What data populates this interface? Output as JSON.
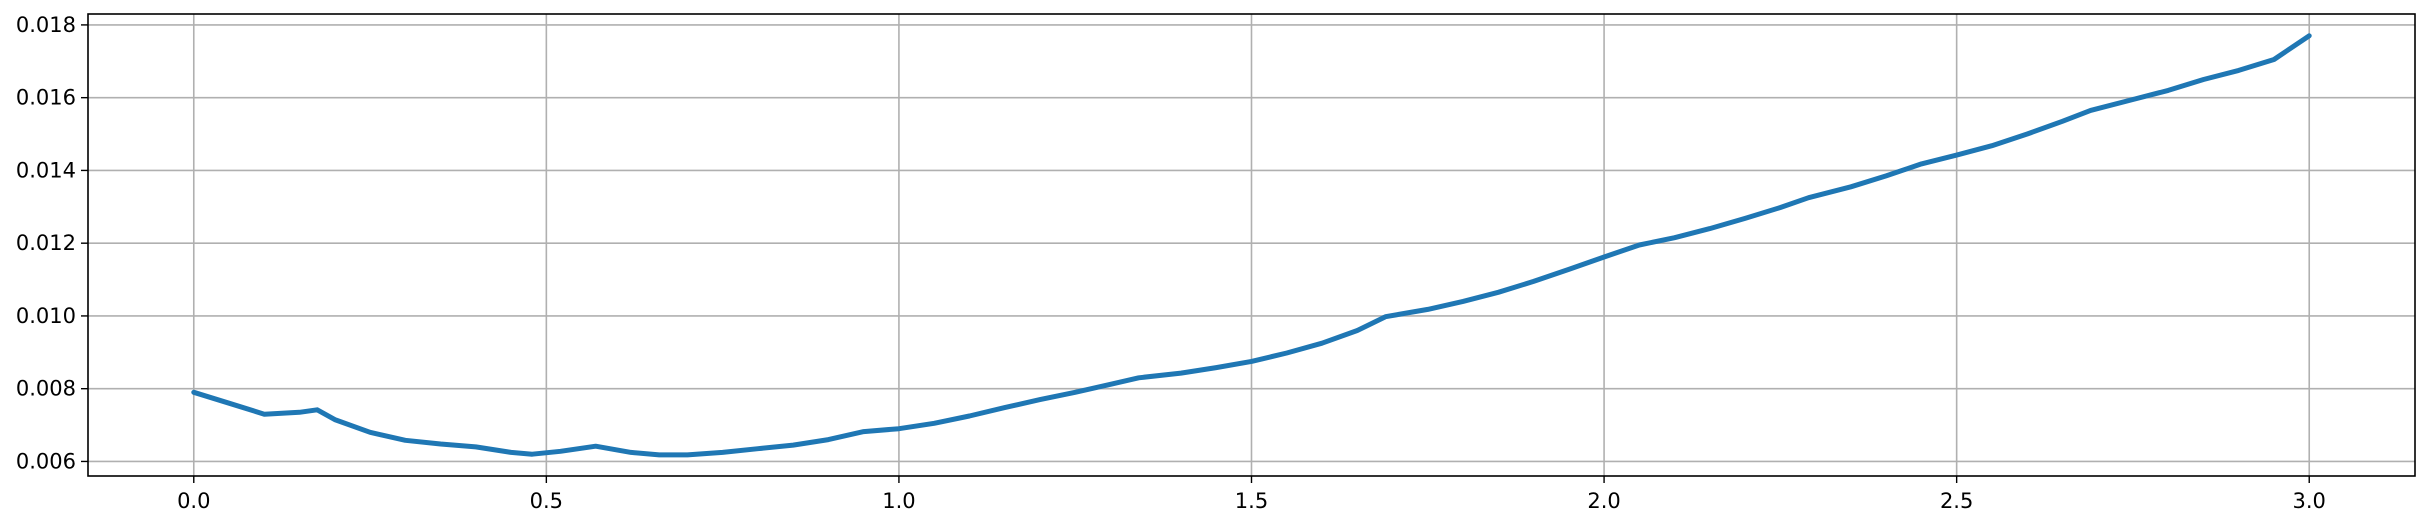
{
  "chart_data": {
    "type": "line",
    "title": "",
    "xlabel": "",
    "ylabel": "",
    "xlim": [
      -0.15,
      3.15
    ],
    "ylim": [
      0.0056,
      0.0183
    ],
    "grid": true,
    "x_ticks": [
      0.0,
      0.5,
      1.0,
      1.5,
      2.0,
      2.5,
      3.0
    ],
    "x_tick_labels": [
      "0.0",
      "0.5",
      "1.0",
      "1.5",
      "2.0",
      "2.5",
      "3.0"
    ],
    "y_ticks": [
      0.006,
      0.008,
      0.01,
      0.012,
      0.014,
      0.016,
      0.018
    ],
    "y_tick_labels": [
      "0.006",
      "0.008",
      "0.010",
      "0.012",
      "0.014",
      "0.016",
      "0.018"
    ],
    "series": [
      {
        "color": "#1f77b4",
        "x": [
          0.0,
          0.05,
          0.1,
          0.15,
          0.175,
          0.2,
          0.25,
          0.3,
          0.35,
          0.4,
          0.45,
          0.48,
          0.52,
          0.57,
          0.62,
          0.66,
          0.7,
          0.75,
          0.8,
          0.85,
          0.9,
          0.95,
          1.0,
          1.05,
          1.1,
          1.15,
          1.2,
          1.25,
          1.3,
          1.34,
          1.4,
          1.45,
          1.5,
          1.55,
          1.6,
          1.65,
          1.69,
          1.75,
          1.8,
          1.85,
          1.9,
          1.95,
          2.0,
          2.05,
          2.1,
          2.15,
          2.2,
          2.25,
          2.29,
          2.35,
          2.4,
          2.45,
          2.5,
          2.55,
          2.6,
          2.65,
          2.69,
          2.75,
          2.8,
          2.85,
          2.9,
          2.95,
          3.0
        ],
        "y": [
          0.0079,
          0.0076,
          0.0073,
          0.00735,
          0.00742,
          0.00715,
          0.0068,
          0.00658,
          0.00648,
          0.0064,
          0.00625,
          0.0062,
          0.00628,
          0.00642,
          0.00625,
          0.00618,
          0.00618,
          0.00625,
          0.00635,
          0.00645,
          0.0066,
          0.00682,
          0.0069,
          0.00705,
          0.00725,
          0.00748,
          0.0077,
          0.0079,
          0.00812,
          0.0083,
          0.00843,
          0.00858,
          0.00875,
          0.00898,
          0.00925,
          0.0096,
          0.00998,
          0.01018,
          0.0104,
          0.01065,
          0.01095,
          0.01128,
          0.01162,
          0.01195,
          0.01215,
          0.0124,
          0.01268,
          0.01298,
          0.01325,
          0.01355,
          0.01385,
          0.01418,
          0.01442,
          0.01468,
          0.015,
          0.01535,
          0.01565,
          0.01595,
          0.0162,
          0.0165,
          0.01675,
          0.01705,
          0.0177
        ]
      }
    ]
  }
}
